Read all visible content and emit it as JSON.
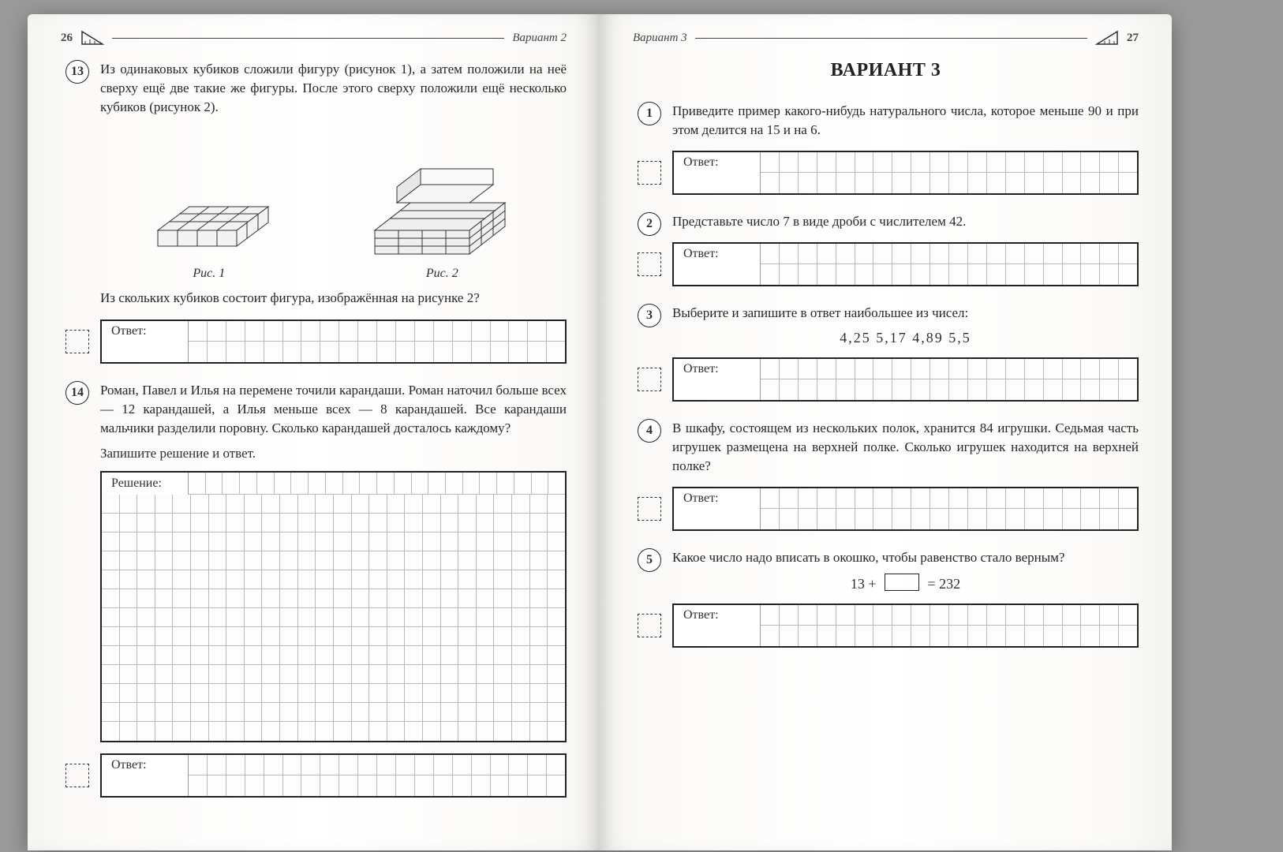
{
  "colors": {
    "ink": "#222222",
    "grid": "#bbbbbb",
    "paper": "#ffffff",
    "shade": "#e3e3e3"
  },
  "left": {
    "page_number": "26",
    "running": "Вариант 2",
    "t13": {
      "num": "13",
      "text": "Из одинаковых кубиков сложили фигуру (рисунок 1), а затем положили на неё сверху ещё две такие же фигуры. После этого сверху положили ещё несколько кубиков (рисунок 2).",
      "fig1_caption": "Рис. 1",
      "fig2_caption": "Рис. 2",
      "question": "Из скольких кубиков состоит фигура, изображённая на рисунке 2?",
      "answer_label": "Ответ:"
    },
    "t14": {
      "num": "14",
      "text": "Роман, Павел и Илья на перемене точили карандаши. Роман наточил больше всех — 12 карандашей, а Илья меньше всех — 8 карандашей. Все карандаши мальчики разделили поровну. Сколько карандашей досталось каждому?",
      "instruction": "Запишите решение и ответ.",
      "solution_label": "Решение:",
      "answer_label": "Ответ:"
    }
  },
  "right": {
    "page_number": "27",
    "running": "Вариант 3",
    "title": "ВАРИАНТ 3",
    "t1": {
      "num": "1",
      "text": "Приведите пример какого-нибудь натурального числа, которое меньше 90 и при этом делится на 15 и на 6.",
      "answer_label": "Ответ:"
    },
    "t2": {
      "num": "2",
      "text": "Представьте число 7 в виде дроби с числителем 42.",
      "answer_label": "Ответ:"
    },
    "t3": {
      "num": "3",
      "text": "Выберите и запишите в ответ наибольшее из чисел:",
      "numbers": "4,25   5,17   4,89   5,5",
      "answer_label": "Ответ:"
    },
    "t4": {
      "num": "4",
      "text": "В шкафу, состоящем из нескольких полок, хранится 84 игрушки. Седьмая часть игрушек размещена на верхней полке. Сколько игрушек находится на верхней полке?",
      "answer_label": "Ответ:"
    },
    "t5": {
      "num": "5",
      "text": "Какое число надо вписать в окошко, чтобы равенство стало верным?",
      "eq_left": "13 +",
      "eq_right": "= 232",
      "answer_label": "Ответ:"
    }
  },
  "answer_grid": {
    "cols": 20,
    "rows": 2
  },
  "solution_grid": {
    "cols": 22,
    "rows": 14
  }
}
